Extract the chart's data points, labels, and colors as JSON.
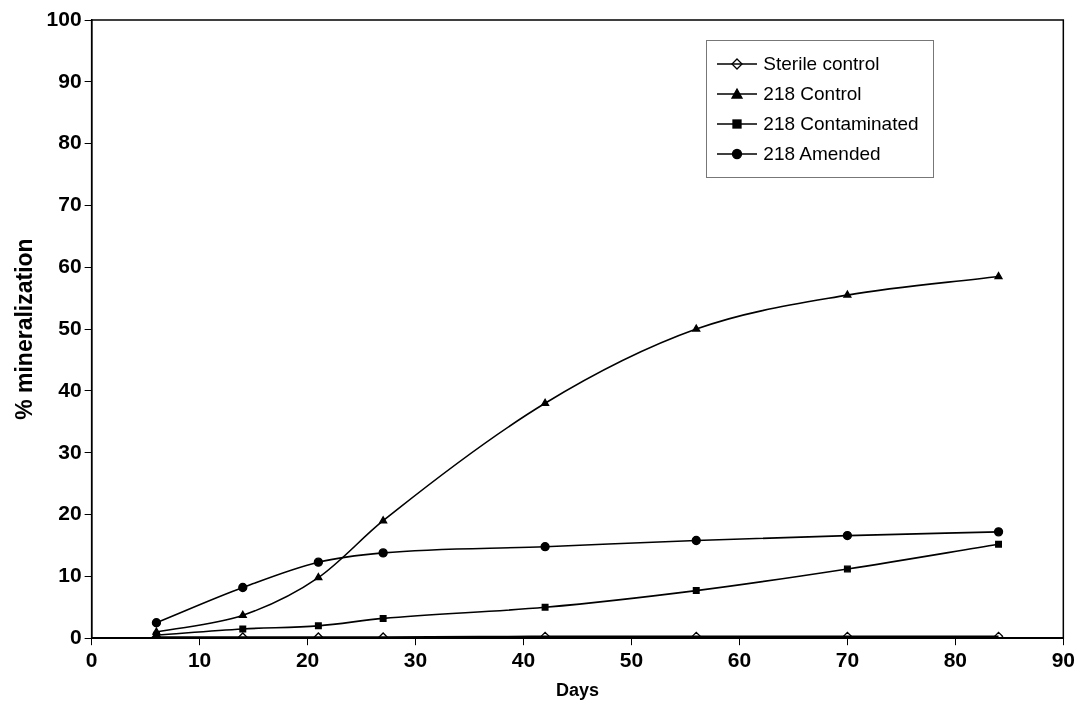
{
  "chart_data": {
    "type": "line",
    "xlabel": "Days",
    "ylabel": "% mineralization",
    "x": [
      6,
      14,
      21,
      27,
      42,
      56,
      70,
      84
    ],
    "series": [
      {
        "name": "Sterile control",
        "color": "#000000",
        "marker": "diamond",
        "values": [
          0.2,
          0.2,
          0.2,
          0.2,
          0.3,
          0.3,
          0.3,
          0.3
        ]
      },
      {
        "name": "218 Control",
        "color": "#000000",
        "marker": "triangle",
        "values": [
          1,
          3.7,
          9.8,
          19,
          38,
          50,
          55.5,
          58.5
        ]
      },
      {
        "name": "218 Contaminated",
        "color": "#000000",
        "marker": "square",
        "values": [
          0.5,
          1.5,
          2,
          3.2,
          5,
          7.7,
          11.2,
          15.2
        ]
      },
      {
        "name": "218 Amended",
        "color": "#000000",
        "marker": "circle",
        "values": [
          2.5,
          8.2,
          12.3,
          13.8,
          14.8,
          15.8,
          16.6,
          17.2
        ]
      }
    ],
    "xlim": [
      0,
      90
    ],
    "xticks": [
      0,
      10,
      20,
      30,
      40,
      50,
      60,
      70,
      80,
      90
    ],
    "ylim": [
      0,
      100
    ],
    "yticks": [
      0,
      10,
      20,
      30,
      40,
      50,
      60,
      70,
      80,
      90,
      100
    ],
    "grid": false,
    "legend": "top right",
    "line_style": "solid"
  }
}
